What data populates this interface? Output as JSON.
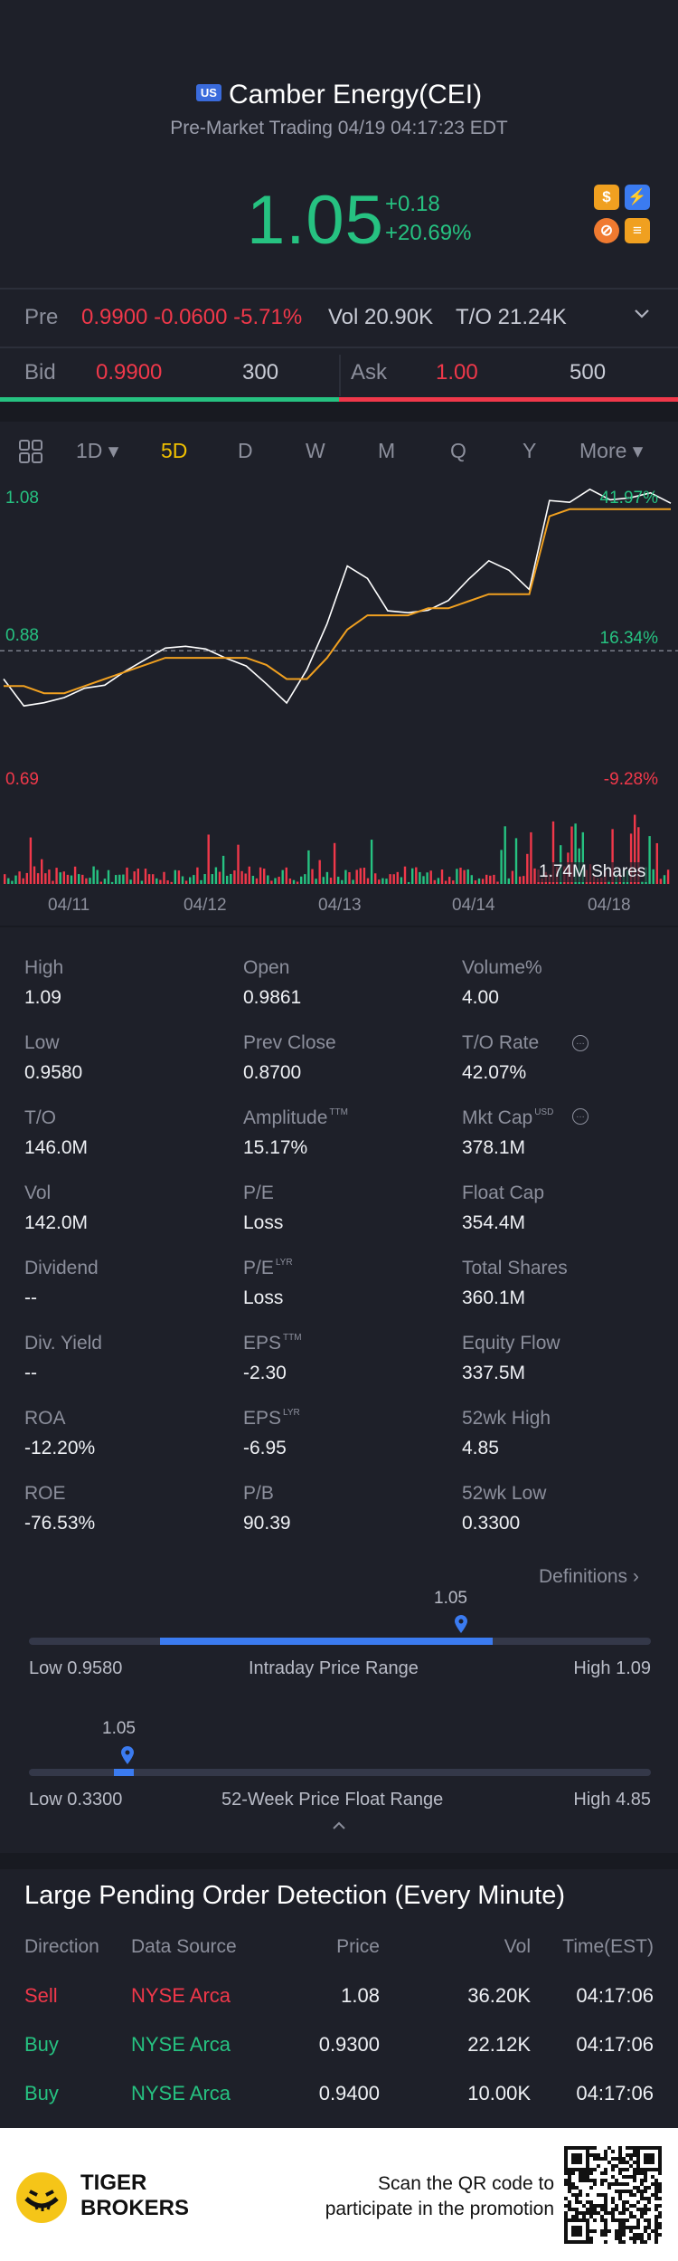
{
  "header": {
    "market_badge": "US",
    "title": "Camber Energy(CEI)",
    "subtitle": "Pre-Market Trading 04/19 04:17:23 EDT"
  },
  "quote": {
    "price": "1.05",
    "change": "+0.18",
    "change_pct": "+20.69%"
  },
  "icons": [
    "dollar-icon",
    "lightning-icon",
    "no-short-icon",
    "stack-icon"
  ],
  "premarket": {
    "label": "Pre",
    "value": "0.9900 -0.0600 -5.71%",
    "vol": "Vol 20.90K",
    "turnover": "T/O 21.24K"
  },
  "bidask": {
    "bid_label": "Bid",
    "bid_price": "0.9900",
    "bid_size": "300",
    "ask_label": "Ask",
    "ask_price": "1.00",
    "ask_size": "500",
    "bid_share": 0.5
  },
  "tabs": [
    "1D",
    "5D",
    "D",
    "W",
    "M",
    "Q",
    "Y",
    "More"
  ],
  "active_tab": "5D",
  "chart_data": {
    "type": "line",
    "x_ticks": [
      "04/11",
      "04/12",
      "04/13",
      "04/14",
      "04/18"
    ],
    "y_labels_left": [
      "1.08",
      "0.88",
      "0.69"
    ],
    "y_labels_right": [
      "41.97%",
      "16.34%",
      "-9.28%"
    ],
    "ylim": [
      0.69,
      1.08
    ],
    "prev_close": 0.87,
    "volume_label": "1.74M Shares",
    "series": [
      {
        "values": [
          0.83,
          0.79,
          0.8,
          0.8,
          0.82,
          0.82,
          0.84,
          0.86,
          0.87,
          0.88,
          0.87,
          0.86,
          0.85,
          0.82,
          0.8,
          0.84,
          0.91,
          0.99,
          0.97,
          0.93,
          0.92,
          0.93,
          0.94,
          0.97,
          1.0,
          0.98,
          0.96,
          1.08,
          1.08,
          1.1,
          1.08,
          1.09,
          1.09,
          1.08
        ]
      },
      {
        "values": [
          0.82,
          0.82,
          0.81,
          0.81,
          0.82,
          0.83,
          0.84,
          0.85,
          0.86,
          0.86,
          0.86,
          0.86,
          0.86,
          0.85,
          0.83,
          0.83,
          0.86,
          0.9,
          0.92,
          0.92,
          0.92,
          0.93,
          0.93,
          0.94,
          0.95,
          0.95,
          0.95,
          1.06,
          1.07,
          1.07,
          1.07,
          1.07,
          1.07,
          1.07
        ]
      }
    ]
  },
  "stats": [
    {
      "label": "High",
      "value": "1.09"
    },
    {
      "label": "Open",
      "value": "0.9861"
    },
    {
      "label": "Volume%",
      "value": "4.00"
    },
    {
      "label": "Low",
      "value": "0.9580"
    },
    {
      "label": "Prev Close",
      "value": "0.8700"
    },
    {
      "label": "T/O Rate",
      "value": "42.07%"
    },
    {
      "label": "T/O",
      "value": "146.0M"
    },
    {
      "label": "Amplitude",
      "value": "15.17%"
    },
    {
      "label": "Mkt Cap",
      "value": "378.1M"
    },
    {
      "label": "Vol",
      "value": "142.0M"
    },
    {
      "label": "P/E",
      "value": "Loss"
    },
    {
      "label": "Float Cap",
      "value": "354.4M"
    },
    {
      "label": "Dividend",
      "value": "--"
    },
    {
      "label": "P/E",
      "value": "Loss"
    },
    {
      "label": "Total Shares",
      "value": "360.1M"
    },
    {
      "label": "Div. Yield",
      "value": "--"
    },
    {
      "label": "EPS",
      "value": "-2.30"
    },
    {
      "label": "Equity Flow",
      "value": "337.5M"
    },
    {
      "label": "ROA",
      "value": "-12.20%"
    },
    {
      "label": "EPS",
      "value": "-6.95"
    },
    {
      "label": "52wk High",
      "value": "4.85"
    },
    {
      "label": "ROE",
      "value": "-76.53%"
    },
    {
      "label": "P/B",
      "value": "90.39"
    },
    {
      "label": "52wk Low",
      "value": "0.3300"
    }
  ],
  "sup_tags": {
    "pe1": "TTM",
    "pe2": "LYR",
    "eps1": "TTM",
    "eps2": "LYR",
    "mktcap": "USD"
  },
  "definitions": "Definitions",
  "intraday": {
    "current": "1.05",
    "low": "Low 0.9580",
    "title": "Intraday Price Range",
    "high": "High 1.09",
    "position": 0.685,
    "fill_start": 0.21
  },
  "week52": {
    "current": "1.05",
    "low": "Low 0.3300",
    "title": "52-Week Price Float Range",
    "high": "High 4.85",
    "position": 0.16
  },
  "orders": {
    "title": "Large Pending Order Detection (Every Minute)",
    "headers": [
      "Direction",
      "Data Source",
      "Price",
      "Vol",
      "Time(EST)"
    ],
    "rows": [
      {
        "direction": "Sell",
        "source": "NYSE Arca",
        "price": "1.08",
        "vol": "36.20K",
        "time": "04:17:06"
      },
      {
        "direction": "Buy",
        "source": "NYSE Arca",
        "price": "0.9300",
        "vol": "22.12K",
        "time": "04:17:06"
      },
      {
        "direction": "Buy",
        "source": "NYSE Arca",
        "price": "0.9400",
        "vol": "10.00K",
        "time": "04:17:06"
      }
    ]
  },
  "footer": {
    "brand_line1": "TIGER",
    "brand_line2": "BROKERS",
    "promo_line1": "Scan the QR code to",
    "promo_line2": "participate in the promotion"
  },
  "colors": {
    "green": "#26c281",
    "red": "#f0384a",
    "blue": "#3b7bf0",
    "orange": "#f0a020",
    "bg": "#1e2029"
  }
}
